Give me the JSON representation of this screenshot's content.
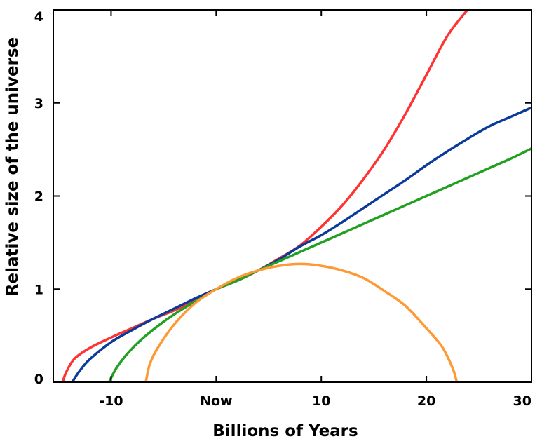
{
  "chart_data": {
    "type": "line",
    "title": "",
    "xlabel": "Billions of Years",
    "ylabel": "Relative size of the universe",
    "xlim": [
      -15.5,
      30
    ],
    "ylim": [
      0,
      4
    ],
    "x_ticks": [
      {
        "value": -10,
        "label": "-10"
      },
      {
        "value": 0,
        "label": "Now"
      },
      {
        "value": 10,
        "label": "10"
      },
      {
        "value": 20,
        "label": "20"
      },
      {
        "value": 30,
        "label": "30"
      }
    ],
    "y_ticks": [
      {
        "value": 0,
        "label": "0"
      },
      {
        "value": 1,
        "label": "1"
      },
      {
        "value": 2,
        "label": "2"
      },
      {
        "value": 3,
        "label": "3"
      },
      {
        "value": 4,
        "label": "4"
      }
    ],
    "grid": false,
    "legend": "none",
    "series": [
      {
        "color": "#ff3333",
        "x": [
          -14.6,
          -14.3,
          -13.5,
          -12,
          -10,
          -8,
          -6,
          -4,
          -2,
          0,
          2,
          4,
          6,
          8,
          10,
          12,
          14,
          16,
          18,
          20,
          22,
          23.9
        ],
        "values": [
          0,
          0.1,
          0.25,
          0.37,
          0.48,
          0.58,
          0.68,
          0.77,
          0.88,
          1.0,
          1.09,
          1.2,
          1.33,
          1.47,
          1.67,
          1.9,
          2.18,
          2.5,
          2.88,
          3.3,
          3.72,
          4.0
        ]
      },
      {
        "color": "#0a3a9a",
        "x": [
          -13.7,
          -13,
          -12,
          -10,
          -8,
          -6,
          -4,
          -2,
          0,
          2,
          4,
          6,
          8,
          10,
          12,
          14,
          16,
          18,
          20,
          22,
          24,
          26,
          28,
          30
        ],
        "values": [
          0,
          0.12,
          0.25,
          0.43,
          0.56,
          0.68,
          0.79,
          0.9,
          1.0,
          1.1,
          1.2,
          1.32,
          1.46,
          1.58,
          1.72,
          1.87,
          2.02,
          2.17,
          2.33,
          2.48,
          2.62,
          2.75,
          2.85,
          2.95
        ]
      },
      {
        "color": "#22a022",
        "x": [
          -10.2,
          -9.5,
          -8.5,
          -7,
          -5,
          -3,
          -1,
          0,
          2,
          4,
          6,
          8,
          10,
          12,
          14,
          16,
          18,
          20,
          22,
          24,
          26,
          28,
          30
        ],
        "values": [
          0,
          0.15,
          0.3,
          0.47,
          0.65,
          0.8,
          0.93,
          1.0,
          1.09,
          1.2,
          1.3,
          1.4,
          1.5,
          1.6,
          1.7,
          1.8,
          1.9,
          2.0,
          2.1,
          2.2,
          2.3,
          2.4,
          2.51
        ]
      },
      {
        "color": "#ff9933",
        "x": [
          -6.7,
          -6.3,
          -5.5,
          -4,
          -2,
          0,
          2,
          4,
          6,
          8,
          10,
          12,
          14,
          16,
          18,
          20,
          21.5,
          22.5,
          22.9
        ],
        "values": [
          0,
          0.2,
          0.38,
          0.62,
          0.85,
          1.0,
          1.12,
          1.2,
          1.25,
          1.27,
          1.25,
          1.2,
          1.12,
          0.98,
          0.82,
          0.58,
          0.38,
          0.15,
          0
        ]
      }
    ]
  }
}
